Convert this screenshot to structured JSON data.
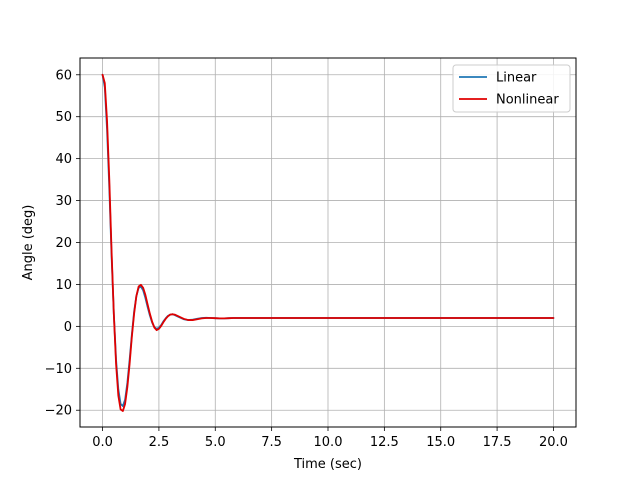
{
  "chart_data": {
    "type": "line",
    "title": "",
    "xlabel": "Time (sec)",
    "ylabel": "Angle (deg)",
    "xlim": [
      -1.0,
      21.0
    ],
    "ylim": [
      -24,
      64
    ],
    "xticks": [
      0.0,
      2.5,
      5.0,
      7.5,
      10.0,
      12.5,
      15.0,
      17.5,
      20.0
    ],
    "xtick_labels": [
      "0.0",
      "2.5",
      "5.0",
      "7.5",
      "10.0",
      "12.5",
      "15.0",
      "17.5",
      "20.0"
    ],
    "yticks": [
      -20,
      -10,
      0,
      10,
      20,
      30,
      40,
      50,
      60
    ],
    "ytick_labels": [
      "−20",
      "−10",
      "0",
      "10",
      "20",
      "30",
      "40",
      "50",
      "60"
    ],
    "grid": true,
    "legend": "top-right",
    "series": [
      {
        "name": "Linear",
        "color": "#1f77b4",
        "x": [
          0,
          0.1,
          0.2,
          0.3,
          0.4,
          0.5,
          0.6,
          0.7,
          0.8,
          0.9,
          1.0,
          1.1,
          1.2,
          1.3,
          1.4,
          1.5,
          1.6,
          1.7,
          1.8,
          1.9,
          2.0,
          2.1,
          2.2,
          2.3,
          2.4,
          2.5,
          2.6,
          2.7,
          2.8,
          2.9,
          3.0,
          3.1,
          3.2,
          3.4,
          3.6,
          3.8,
          4.0,
          4.2,
          4.4,
          4.6,
          4.8,
          5.0,
          5.2,
          5.4,
          5.6,
          5.8,
          6.0,
          6.2,
          6.5,
          7.0,
          7.5,
          8.0,
          9.0,
          10.0,
          12.5,
          15.0,
          17.5,
          20.0
        ],
        "y": [
          60,
          57,
          47,
          33,
          17,
          3,
          -8,
          -15,
          -18.5,
          -19,
          -17.5,
          -13.5,
          -8,
          -2,
          3.5,
          7.2,
          9.2,
          9.5,
          8.6,
          6.8,
          4.6,
          2.6,
          0.9,
          -0.2,
          -0.6,
          -0.3,
          0.3,
          1.2,
          1.9,
          2.5,
          2.8,
          2.9,
          2.7,
          2.2,
          1.7,
          1.5,
          1.6,
          1.8,
          2.0,
          2.05,
          2.0,
          1.95,
          1.9,
          1.9,
          1.95,
          2.0,
          2.0,
          2.0,
          2.0,
          2.0,
          2.0,
          2.0,
          2.0,
          2.0,
          2.0,
          2.0,
          2.0,
          2.0
        ]
      },
      {
        "name": "Nonlinear",
        "color": "#e00000",
        "x": [
          0,
          0.1,
          0.2,
          0.3,
          0.4,
          0.5,
          0.6,
          0.7,
          0.8,
          0.9,
          1.0,
          1.1,
          1.2,
          1.3,
          1.4,
          1.5,
          1.6,
          1.7,
          1.8,
          1.9,
          2.0,
          2.1,
          2.2,
          2.3,
          2.4,
          2.5,
          2.6,
          2.7,
          2.8,
          2.9,
          3.0,
          3.1,
          3.2,
          3.4,
          3.6,
          3.8,
          4.0,
          4.2,
          4.4,
          4.6,
          4.8,
          5.0,
          5.2,
          5.4,
          5.6,
          5.8,
          6.0,
          6.2,
          6.5,
          7.0,
          7.5,
          8.0,
          9.0,
          10.0,
          12.5,
          15.0,
          17.5,
          20.0
        ],
        "y": [
          60,
          58,
          49,
          35,
          18,
          3,
          -9,
          -16.5,
          -19.8,
          -20.2,
          -18.5,
          -14.5,
          -9,
          -2.5,
          3,
          7.2,
          9.5,
          9.9,
          9.2,
          7.5,
          5.2,
          3,
          1.1,
          -0.3,
          -0.9,
          -0.6,
          0.1,
          1,
          1.8,
          2.4,
          2.8,
          2.9,
          2.8,
          2.3,
          1.8,
          1.5,
          1.5,
          1.7,
          1.9,
          2.0,
          2.0,
          1.95,
          1.9,
          1.9,
          1.95,
          2.0,
          2.0,
          2.0,
          2.0,
          2.0,
          2.0,
          2.0,
          2.0,
          2.0,
          2.0,
          2.0,
          2.0,
          2.0
        ]
      }
    ]
  }
}
